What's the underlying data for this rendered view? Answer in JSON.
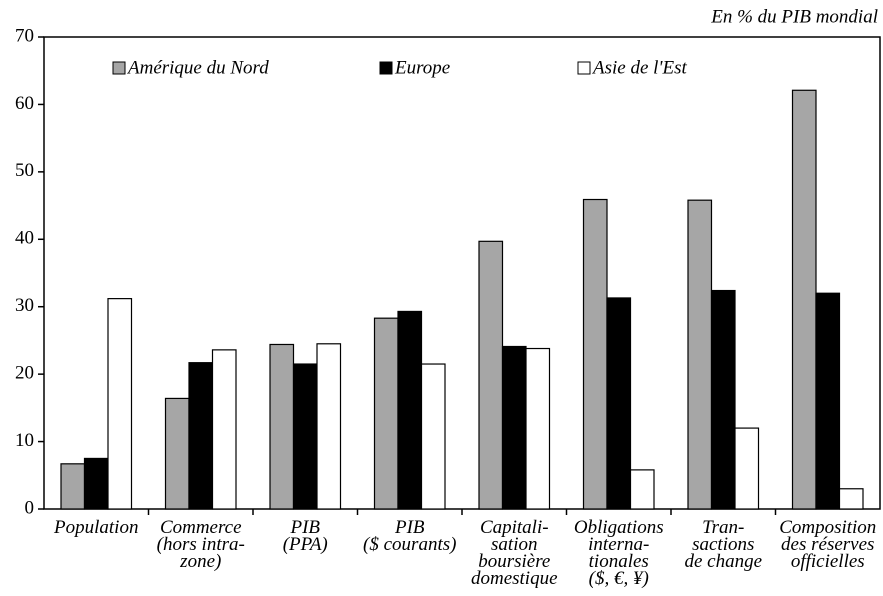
{
  "chart_data": {
    "type": "bar",
    "annotation": "En % du PIB mondial",
    "categories": [
      "Population",
      "Commerce\n(hors intra-\nzone)",
      "PIB\n(PPA)",
      "PIB\n($ courants)",
      "Capitali-\nsation\nboursière\ndomestique",
      "Obligations\ninterna-\ntionales\n($, €, ¥)",
      "Tran-\nsactions\nde change",
      "Composition\ndes réserves\nofficielles"
    ],
    "series": [
      {
        "name": "Amérique du Nord",
        "color": "#a6a6a6",
        "values": [
          6.7,
          16.4,
          24.4,
          28.3,
          39.7,
          45.9,
          45.8,
          62.1
        ]
      },
      {
        "name": "Europe",
        "color": "#000000",
        "values": [
          7.5,
          21.7,
          21.5,
          29.3,
          24.1,
          31.3,
          32.4,
          32.0
        ]
      },
      {
        "name": "Asie de l'Est",
        "color": "#ffffff",
        "values": [
          31.2,
          23.6,
          24.5,
          21.5,
          23.8,
          5.8,
          12.0,
          3.0
        ]
      }
    ],
    "ylim": [
      0,
      70
    ],
    "yticks": [
      0,
      10,
      20,
      30,
      40,
      50,
      60,
      70
    ],
    "grid": false,
    "legend": "top"
  }
}
